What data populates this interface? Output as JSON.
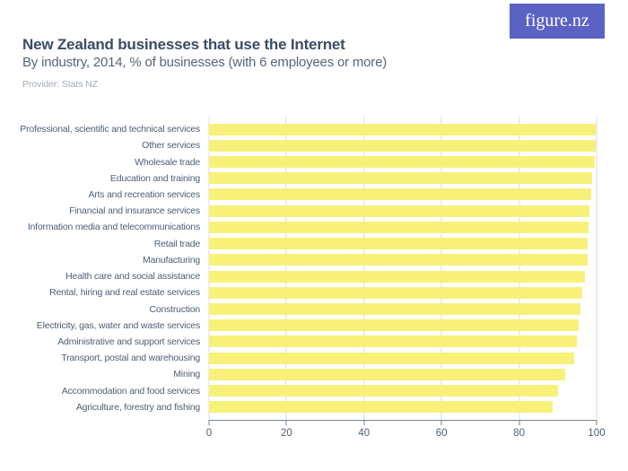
{
  "header": {
    "title": "New Zealand businesses that use the Internet",
    "subtitle": "By industry, 2014, % of businesses (with 6 employees or more)",
    "provider": "Provider: Stats NZ",
    "logo_text": "figure.nz"
  },
  "colors": {
    "bar": "#F7F17A",
    "logo_bg": "#5A62C4",
    "title": "#3A4D66",
    "subtitle": "#55677C",
    "provider": "#A3ACB5",
    "label": "#4E6076",
    "axis_line": "#76828F",
    "gridline": "#DBDBDB"
  },
  "chart_data": {
    "type": "bar",
    "orientation": "horizontal",
    "title": "New Zealand businesses that use the Internet",
    "subtitle": "By industry, 2014, % of businesses (with 6 employees or more)",
    "source": "Provider: Stats NZ",
    "xlabel": "",
    "ylabel": "",
    "unit": "% of businesses",
    "xlim": [
      0,
      100
    ],
    "x_ticks": [
      0,
      20,
      40,
      60,
      80,
      100
    ],
    "grid": true,
    "legend": false,
    "categories": [
      "Professional, scientific and technical services",
      "Other services",
      "Wholesale trade",
      "Education and training",
      "Arts and recreation services",
      "Financial and insurance services",
      "Information media and telecommunications",
      "Retail trade",
      "Manufacturing",
      "Health care and social assistance",
      "Rental, hiring and real estate services",
      "Construction",
      "Electricity, gas, water and waste services",
      "Administrative and support services",
      "Transport, postal and warehousing",
      "Mining",
      "Accommodation and food services",
      "Agriculture, forestry and fishing"
    ],
    "values": [
      99.8,
      99.7,
      99.5,
      98.9,
      98.7,
      98.2,
      98.0,
      97.8,
      97.6,
      97.1,
      96.4,
      95.9,
      95.4,
      95.0,
      94.2,
      92.0,
      90.1,
      88.6
    ]
  }
}
